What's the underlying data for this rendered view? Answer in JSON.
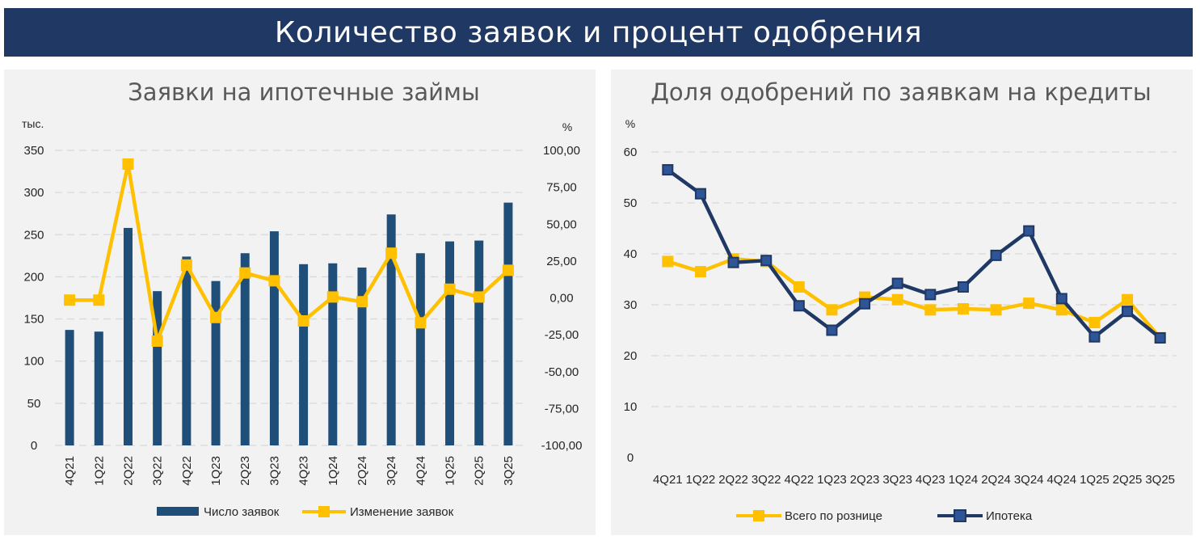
{
  "header": {
    "title": "Количество заявок и процент одобрения"
  },
  "chart_data": [
    {
      "type": "bar",
      "title": "Заявки на ипотечные займы",
      "y_unit": "тыс.",
      "y2_unit": "%",
      "categories": [
        "4Q21",
        "1Q22",
        "2Q22",
        "3Q22",
        "4Q22",
        "1Q23",
        "2Q23",
        "3Q23",
        "4Q23",
        "1Q24",
        "2Q24",
        "3Q24",
        "4Q24",
        "1Q25",
        "2Q25",
        "3Q25"
      ],
      "ylim": [
        0,
        350
      ],
      "yticks": [
        "0",
        "50",
        "100",
        "150",
        "200",
        "250",
        "300",
        "350"
      ],
      "y2lim": [
        -100,
        100
      ],
      "y2ticks": [
        "-100,00",
        "-75,00",
        "-50,00",
        "-25,00",
        "0,00",
        "25,00",
        "50,00",
        "75,00",
        "100,00"
      ],
      "grid": true,
      "legend_position": "bottom",
      "series": [
        {
          "name": "Число заявок",
          "kind": "bar",
          "axis": "left",
          "color": "#1f4e79",
          "values": [
            137,
            135,
            258,
            183,
            224,
            195,
            228,
            254,
            215,
            216,
            211,
            274,
            228,
            242,
            243,
            288
          ]
        },
        {
          "name": "Изменение заявок",
          "kind": "line",
          "axis": "right",
          "color": "#ffc000",
          "values": [
            -1.5,
            -1.5,
            90.7,
            -29.3,
            22.3,
            -13.3,
            16.9,
            11.6,
            -15.6,
            0.6,
            -2.6,
            30.3,
            -16.9,
            5.9,
            0.6,
            18.7
          ]
        }
      ]
    },
    {
      "type": "line",
      "title": "Доля одобрений по заявкам на кредиты",
      "y_unit": "%",
      "categories": [
        "4Q21",
        "1Q22",
        "2Q22",
        "3Q22",
        "4Q22",
        "1Q23",
        "2Q23",
        "3Q23",
        "4Q23",
        "1Q24",
        "2Q24",
        "3Q24",
        "4Q24",
        "1Q25",
        "2Q25",
        "3Q25"
      ],
      "ylim": [
        0,
        60
      ],
      "yticks": [
        "0",
        "10",
        "20",
        "30",
        "40",
        "50",
        "60"
      ],
      "grid": true,
      "legend_position": "bottom",
      "series": [
        {
          "name": "Всего по рознице",
          "color": "#ffc000",
          "values": [
            38.5,
            36.5,
            39.0,
            38.5,
            33.5,
            29.0,
            31.5,
            31.0,
            29.0,
            29.2,
            29.0,
            30.3,
            29.0,
            26.5,
            31.0,
            23.5
          ]
        },
        {
          "name": "Ипотека",
          "color": "#1f3864",
          "values": [
            56.5,
            51.8,
            38.3,
            38.7,
            29.8,
            25.0,
            30.2,
            34.2,
            32.0,
            33.5,
            39.7,
            44.5,
            31.2,
            23.7,
            28.7,
            23.5
          ]
        }
      ]
    }
  ]
}
